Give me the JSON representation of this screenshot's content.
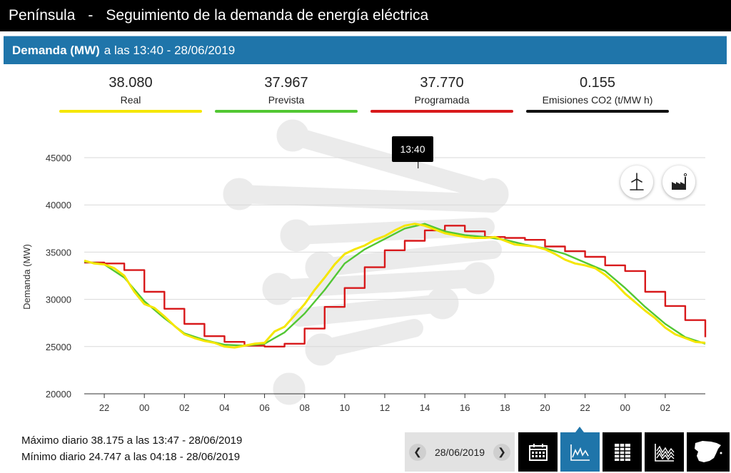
{
  "header": {
    "region": "Península",
    "separator": "-",
    "title": "Seguimiento de la demanda de energía eléctrica"
  },
  "subheader": {
    "label": "Demanda (MW)",
    "time_text": "a las 13:40 - 28/06/2019"
  },
  "stats": [
    {
      "value": "38.080",
      "label": "Real",
      "color": "#f5e600"
    },
    {
      "value": "37.967",
      "label": "Prevista",
      "color": "#52c733"
    },
    {
      "value": "37.770",
      "label": "Programada",
      "color": "#d8191b"
    },
    {
      "value": "0.155",
      "label": "Emisiones CO2 (t/MW h)",
      "color": "#111111"
    }
  ],
  "tooltip": "13:40",
  "footer": {
    "max_text": "Máximo diario 38.175 a las 13:47 - 28/06/2019",
    "min_text": "Mínimo diario 24.747 a las 04:18 - 28/06/2019"
  },
  "date_nav": {
    "date": "28/06/2019",
    "prev_icon": "chevron-left-icon",
    "next_icon": "chevron-right-icon"
  },
  "toolbar": {
    "icons": [
      "calendar-icon",
      "line-chart-icon",
      "table-icon",
      "area-chart-icon",
      "spain-map-icon"
    ],
    "active": "line-chart-icon"
  },
  "chart_buttons": [
    "wind-turbine-icon",
    "factory-icon"
  ],
  "chart_data": {
    "type": "line",
    "ylabel": "Demanda (MW)",
    "ylim": [
      20000,
      47500
    ],
    "yticks": [
      20000,
      25000,
      30000,
      35000,
      40000,
      45000
    ],
    "xlim": [
      -3,
      28
    ],
    "xticks": [
      {
        "hour": -2,
        "label": "22"
      },
      {
        "hour": 0,
        "label": "00"
      },
      {
        "hour": 2,
        "label": "02"
      },
      {
        "hour": 4,
        "label": "04"
      },
      {
        "hour": 6,
        "label": "06"
      },
      {
        "hour": 8,
        "label": "08"
      },
      {
        "hour": 10,
        "label": "10"
      },
      {
        "hour": 12,
        "label": "12"
      },
      {
        "hour": 14,
        "label": "14"
      },
      {
        "hour": 16,
        "label": "16"
      },
      {
        "hour": 18,
        "label": "18"
      },
      {
        "hour": 20,
        "label": "20"
      },
      {
        "hour": 22,
        "label": "22"
      },
      {
        "hour": 24,
        "label": "00"
      },
      {
        "hour": 26,
        "label": "02"
      }
    ],
    "grid": true,
    "series": [
      {
        "name": "Programada",
        "color": "#d8191b",
        "step": true,
        "x": [
          -3,
          -2,
          -1,
          0,
          1,
          2,
          3,
          4,
          5,
          6,
          7,
          8,
          9,
          10,
          11,
          12,
          13,
          14,
          15,
          16,
          17,
          18,
          19,
          20,
          21,
          22,
          23,
          24,
          25,
          26,
          27,
          28
        ],
        "values": [
          33900,
          33800,
          33100,
          30800,
          29000,
          27400,
          26100,
          25500,
          25100,
          25000,
          25300,
          26900,
          29200,
          31200,
          33400,
          35200,
          36200,
          37300,
          37800,
          37200,
          36600,
          36500,
          36300,
          35600,
          35100,
          34500,
          33600,
          33000,
          30800,
          29300,
          27800,
          26000
        ]
      },
      {
        "name": "Prevista",
        "color": "#52c733",
        "step": false,
        "x": [
          -3,
          -2,
          -1,
          0,
          1,
          2,
          3,
          4,
          5,
          6,
          7,
          8,
          9,
          10,
          11,
          12,
          13,
          14,
          15,
          16,
          17,
          18,
          19,
          20,
          21,
          22,
          23,
          24,
          25,
          26,
          27,
          28
        ],
        "values": [
          34000,
          33700,
          32300,
          29800,
          28000,
          26400,
          25700,
          25200,
          25100,
          25300,
          26500,
          28500,
          31000,
          33800,
          35300,
          36400,
          37500,
          38000,
          37200,
          36800,
          36600,
          36300,
          35800,
          35400,
          34800,
          33900,
          33000,
          31200,
          29200,
          27400,
          26000,
          25300
        ]
      },
      {
        "name": "Real",
        "color": "#f5e600",
        "step": false,
        "x": [
          -3,
          -2.5,
          -2,
          -1.5,
          -1,
          -0.5,
          0,
          0.5,
          1,
          1.5,
          2,
          2.5,
          3,
          3.5,
          4,
          4.5,
          5,
          5.5,
          6,
          6.5,
          7,
          7.5,
          8,
          8.5,
          9,
          9.5,
          10,
          10.5,
          11,
          11.5,
          12,
          12.5,
          13,
          13.5,
          14,
          14.5,
          15,
          15.5,
          16,
          16.5,
          17,
          17.5,
          18,
          18.5,
          19,
          19.5,
          20,
          20.5,
          21,
          21.5,
          22,
          22.5,
          23,
          23.5,
          24,
          24.5,
          25,
          25.5,
          26,
          26.5,
          27,
          27.5,
          28
        ],
        "values": [
          34100,
          33800,
          33700,
          33300,
          32500,
          30800,
          29500,
          29100,
          28200,
          27200,
          26300,
          25900,
          25600,
          25400,
          25000,
          24900,
          25100,
          25300,
          25400,
          26600,
          27100,
          28300,
          29500,
          31000,
          32300,
          33700,
          34800,
          35300,
          35700,
          36300,
          36700,
          37300,
          37800,
          38000,
          37800,
          37400,
          37000,
          36800,
          36600,
          36500,
          36500,
          36600,
          36200,
          35800,
          35700,
          35600,
          35300,
          34800,
          34200,
          33800,
          33600,
          33300,
          32600,
          31700,
          30600,
          29700,
          28800,
          28000,
          27000,
          26300,
          25900,
          25500,
          25400
        ]
      }
    ]
  }
}
